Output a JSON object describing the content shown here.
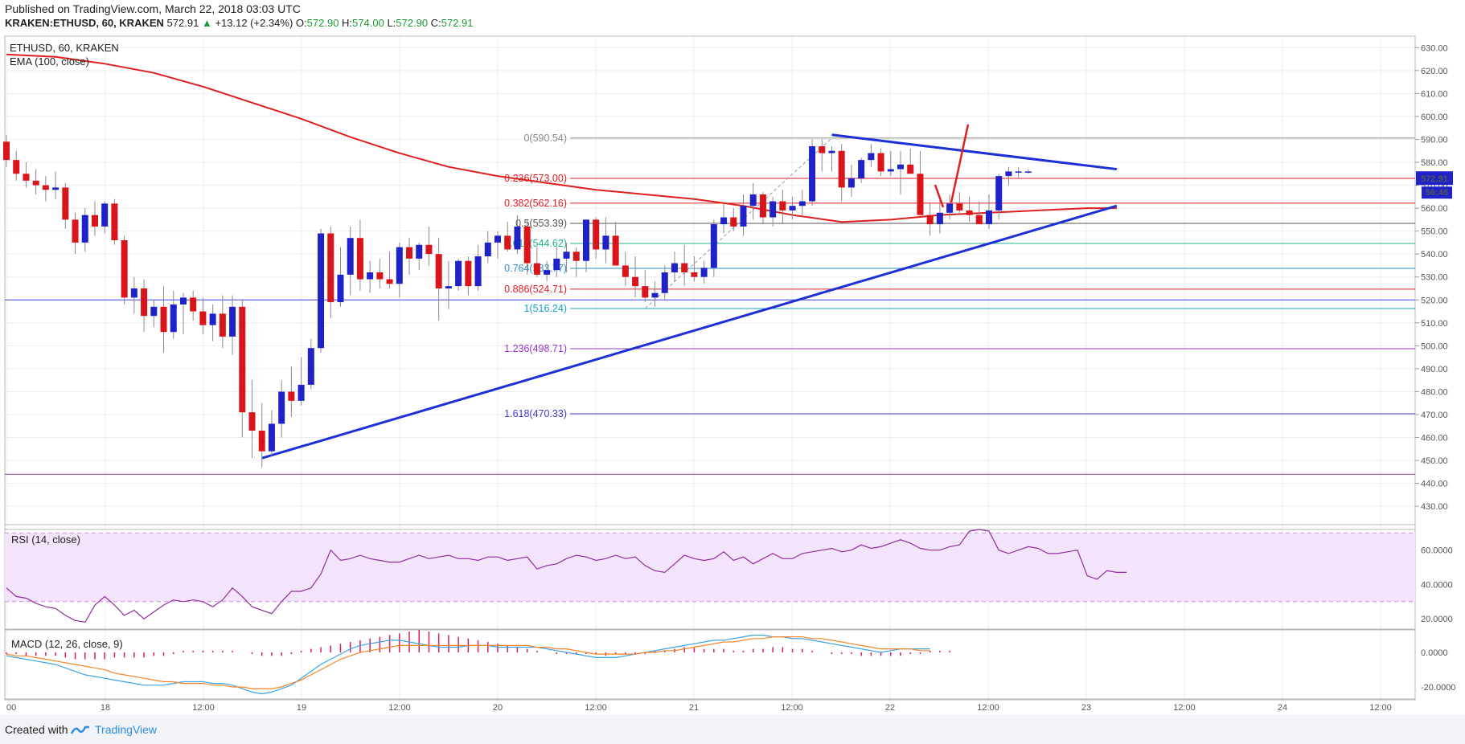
{
  "header": {
    "published": "Published on TradingView.com, March 22, 2018 03:03 UTC",
    "symbol": "KRAKEN:ETHUSD, 60, KRAKEN",
    "last": "572.91",
    "change": "+13.12 (+2.34%)",
    "o_label": "O:",
    "o_value": "572.90",
    "h_label": "H:",
    "h_value": "574.00",
    "l_label": "L:",
    "l_value": "572.90",
    "c_label": "C:",
    "c_value": "572.91"
  },
  "footer": {
    "created_with": "Created with",
    "brand": "TradingView"
  },
  "colors": {
    "up": "#1e22c8",
    "down": "#d9141a",
    "ema": "#e01e1e",
    "trend": "#1d2fd6",
    "rsi": "#8e2e9c",
    "macd": "#3aa3e3",
    "signal": "#f4862a",
    "hist": "#d81b60"
  },
  "chart_data": {
    "type": "candlestick",
    "pane_title": "ETHUSD, 60, KRAKEN",
    "indicator_label": "EMA (100, close)",
    "price_axis": [
      430,
      440,
      450,
      460,
      470,
      480,
      490,
      500,
      510,
      520,
      530,
      540,
      550,
      560,
      570,
      580,
      590,
      600,
      610,
      620,
      630
    ],
    "ylim": [
      422,
      635
    ],
    "x_ticks": [
      "00",
      "18",
      "12:00",
      "19",
      "12:00",
      "20",
      "12:00",
      "21",
      "12:00",
      "22",
      "12:00",
      "23",
      "12:00",
      "24",
      "12:00"
    ],
    "current_price": "572.91",
    "countdown": "56:46",
    "candles": [
      [
        589,
        592,
        578,
        581
      ],
      [
        581,
        585,
        572,
        575
      ],
      [
        575,
        580,
        569,
        572
      ],
      [
        572,
        577,
        566,
        570
      ],
      [
        570,
        574,
        563,
        568
      ],
      [
        568,
        576,
        564,
        569
      ],
      [
        569,
        571,
        551,
        555
      ],
      [
        555,
        558,
        540,
        545
      ],
      [
        545,
        560,
        541,
        557
      ],
      [
        557,
        563,
        548,
        552
      ],
      [
        552,
        563,
        549,
        562
      ],
      [
        562,
        564,
        544,
        546
      ],
      [
        546,
        548,
        518,
        521
      ],
      [
        521,
        530,
        514,
        525
      ],
      [
        525,
        529,
        506,
        513
      ],
      [
        513,
        520,
        508,
        517
      ],
      [
        517,
        526,
        497,
        506
      ],
      [
        506,
        524,
        503,
        518
      ],
      [
        518,
        523,
        505,
        521
      ],
      [
        521,
        524,
        511,
        515
      ],
      [
        515,
        521,
        505,
        509
      ],
      [
        509,
        518,
        502,
        514
      ],
      [
        514,
        522,
        499,
        504
      ],
      [
        504,
        522,
        496,
        517
      ],
      [
        517,
        520,
        460,
        471
      ],
      [
        471,
        485,
        451,
        463
      ],
      [
        463,
        475,
        447,
        454
      ],
      [
        454,
        472,
        452,
        466
      ],
      [
        466,
        485,
        460,
        480
      ],
      [
        480,
        491,
        469,
        476
      ],
      [
        476,
        495,
        474,
        483
      ],
      [
        483,
        503,
        481,
        499
      ],
      [
        499,
        551,
        497,
        549
      ],
      [
        549,
        552,
        512,
        519
      ],
      [
        519,
        543,
        517,
        531
      ],
      [
        531,
        552,
        522,
        547
      ],
      [
        547,
        555,
        524,
        529
      ],
      [
        529,
        537,
        523,
        532
      ],
      [
        532,
        538,
        525,
        529
      ],
      [
        529,
        541,
        525,
        527
      ],
      [
        527,
        545,
        521,
        543
      ],
      [
        543,
        547,
        531,
        538
      ],
      [
        538,
        545,
        533,
        544
      ],
      [
        544,
        552,
        535,
        540
      ],
      [
        540,
        547,
        511,
        525
      ],
      [
        525,
        537,
        516,
        526
      ],
      [
        526,
        538,
        524,
        537
      ],
      [
        537,
        539,
        522,
        526
      ],
      [
        526,
        544,
        524,
        539
      ],
      [
        539,
        550,
        536,
        545
      ],
      [
        545,
        550,
        538,
        548
      ],
      [
        548,
        554,
        541,
        542
      ],
      [
        542,
        557,
        540,
        552
      ],
      [
        552,
        555,
        531,
        536
      ],
      [
        536,
        543,
        530,
        531
      ],
      [
        531,
        537,
        528,
        533
      ],
      [
        533,
        543,
        530,
        538
      ],
      [
        538,
        545,
        532,
        541
      ],
      [
        541,
        543,
        530,
        537
      ],
      [
        537,
        555,
        532,
        555
      ],
      [
        555,
        556,
        538,
        542
      ],
      [
        542,
        556,
        536,
        548
      ],
      [
        548,
        554,
        537,
        535
      ],
      [
        535,
        541,
        526,
        530
      ],
      [
        530,
        539,
        521,
        526
      ],
      [
        526,
        533,
        519,
        521
      ],
      [
        521,
        528,
        517,
        523
      ],
      [
        523,
        535,
        520,
        532
      ],
      [
        532,
        541,
        528,
        536
      ],
      [
        536,
        544,
        526,
        532
      ],
      [
        532,
        539,
        528,
        530
      ],
      [
        530,
        537,
        527,
        534
      ],
      [
        534,
        555,
        530,
        553
      ],
      [
        553,
        562,
        549,
        556
      ],
      [
        556,
        560,
        550,
        552
      ],
      [
        552,
        566,
        548,
        561
      ],
      [
        561,
        571,
        555,
        566
      ],
      [
        566,
        567,
        553,
        556
      ],
      [
        556,
        565,
        552,
        563
      ],
      [
        563,
        568,
        553,
        559
      ],
      [
        559,
        565,
        555,
        561
      ],
      [
        561,
        568,
        556,
        563
      ],
      [
        563,
        590,
        561,
        587
      ],
      [
        587,
        590,
        576,
        584
      ],
      [
        584,
        587,
        576,
        585
      ],
      [
        585,
        588,
        563,
        569
      ],
      [
        569,
        579,
        565,
        573
      ],
      [
        573,
        582,
        571,
        581
      ],
      [
        581,
        588,
        578,
        584
      ],
      [
        584,
        586,
        574,
        576
      ],
      [
        576,
        585,
        574,
        577
      ],
      [
        577,
        585,
        566,
        579
      ],
      [
        579,
        586,
        575,
        575
      ],
      [
        575,
        585,
        559,
        557
      ],
      [
        557,
        562,
        548,
        553
      ],
      [
        553,
        565,
        549,
        558
      ],
      [
        558,
        566,
        555,
        562
      ],
      [
        562,
        567,
        557,
        559
      ],
      [
        559,
        565,
        554,
        557
      ],
      [
        557,
        563,
        553,
        553
      ],
      [
        553,
        566,
        551,
        559
      ],
      [
        559,
        575,
        555,
        574
      ],
      [
        574,
        578,
        570,
        576
      ],
      [
        576,
        578,
        573,
        576
      ],
      [
        576,
        577,
        575,
        576
      ]
    ],
    "ema100": [
      [
        0,
        627
      ],
      [
        5,
        626
      ],
      [
        10,
        623
      ],
      [
        15,
        619
      ],
      [
        20,
        613
      ],
      [
        25,
        606
      ],
      [
        30,
        599
      ],
      [
        35,
        591
      ],
      [
        40,
        584
      ],
      [
        45,
        578
      ],
      [
        50,
        574
      ],
      [
        55,
        571
      ],
      [
        60,
        568
      ],
      [
        65,
        566
      ],
      [
        70,
        564
      ],
      [
        75,
        561
      ],
      [
        80,
        557
      ],
      [
        85,
        554
      ],
      [
        90,
        555
      ],
      [
        95,
        557
      ],
      [
        100,
        558
      ],
      [
        105,
        559
      ],
      [
        110,
        560
      ],
      [
        113,
        560
      ]
    ],
    "fibonacci": [
      {
        "level": "0",
        "price": 590.54,
        "label": "0(590.54)",
        "color": "#8a8a8a"
      },
      {
        "level": "0.236",
        "price": 573.0,
        "label": "0.236(573.00)",
        "color": "#e31b23"
      },
      {
        "level": "0.382",
        "price": 562.16,
        "label": "0.382(562.16)",
        "color": "#e31b23"
      },
      {
        "level": "0.5",
        "price": 553.39,
        "label": "0.5(553.39)",
        "color": "#555555"
      },
      {
        "level": "0.618",
        "price": 544.62,
        "label": "0.618(544.62)",
        "color": "#20b38c"
      },
      {
        "level": "0.764",
        "price": 533.77,
        "label": "0.764(533.77)",
        "color": "#2b8fc6"
      },
      {
        "level": "0.886",
        "price": 524.71,
        "label": "0.886(524.71)",
        "color": "#e31b23"
      },
      {
        "level": "1",
        "price": 516.24,
        "label": "1(516.24)",
        "color": "#1aa0c8"
      },
      {
        "level": "1.236",
        "price": 498.71,
        "label": "1.236(498.71)",
        "color": "#9b35c9"
      },
      {
        "level": "1.618",
        "price": 470.33,
        "label": "1.618(470.33)",
        "color": "#3d3dc8"
      }
    ],
    "horizontal_lines": [
      {
        "price": 520,
        "color": "#3a46d6"
      },
      {
        "price": 444,
        "color": "#9c3a8e"
      }
    ],
    "trendlines": [
      {
        "from": [
          26,
          451
        ],
        "to": [
          113,
          561
        ],
        "color": "#1d2fd6"
      },
      {
        "from": [
          84,
          592
        ],
        "to": [
          113,
          577
        ],
        "color": "#1d2fd6"
      }
    ],
    "rsi": {
      "label": "RSI (14, close)",
      "axis": [
        "60.0000",
        "40.0000",
        "20.0000"
      ],
      "band": [
        30,
        70
      ],
      "ylim": [
        14,
        72
      ],
      "values": [
        38,
        33,
        32,
        29,
        27,
        26,
        22,
        19,
        18,
        28,
        33,
        28,
        22,
        25,
        20,
        24,
        28,
        31,
        30,
        31,
        30,
        27,
        31,
        38,
        33,
        27,
        25,
        23,
        30,
        36,
        36,
        38,
        46,
        60,
        54,
        55,
        57,
        55,
        54,
        53,
        53,
        55,
        57,
        55,
        56,
        57,
        55,
        55,
        54,
        56,
        56,
        54,
        55,
        56,
        49,
        51,
        52,
        55,
        57,
        56,
        54,
        55,
        57,
        55,
        56,
        51,
        48,
        47,
        52,
        57,
        55,
        54,
        55,
        59,
        54,
        56,
        52,
        55,
        58,
        55,
        55,
        58,
        59,
        60,
        61,
        59,
        60,
        63,
        61,
        62,
        64,
        66,
        64,
        61,
        60,
        60,
        62,
        63,
        71,
        72,
        71,
        60,
        58,
        60,
        62,
        61,
        58,
        58,
        59,
        60,
        45,
        43,
        48,
        47,
        47
      ]
    },
    "macd": {
      "label": "MACD (12, 26, close, 9)",
      "axis": [
        "0.0000",
        "-20.0000"
      ],
      "ylim": [
        -27,
        13
      ],
      "macd": [
        -2,
        -3,
        -4,
        -5,
        -6,
        -7,
        -9,
        -11,
        -13,
        -14,
        -15,
        -16,
        -17,
        -18,
        -19,
        -19,
        -19,
        -18,
        -17,
        -17,
        -17,
        -18,
        -18,
        -19,
        -21,
        -23,
        -24,
        -23,
        -21,
        -19,
        -15,
        -11,
        -7,
        -4,
        -1,
        2,
        4,
        5,
        6,
        7,
        7,
        6,
        5,
        4,
        3,
        3,
        3,
        4,
        4,
        4,
        3,
        3,
        3,
        3,
        3,
        2,
        1,
        0,
        -1,
        -2,
        -3,
        -3,
        -3,
        -2,
        -1,
        0,
        1,
        2,
        3,
        4,
        5,
        6,
        7,
        7,
        8,
        9,
        10,
        10,
        9,
        9,
        8,
        8,
        7,
        6,
        5,
        4,
        3,
        2,
        1,
        0,
        1,
        2,
        2,
        2,
        2
      ],
      "signal": [
        -1,
        -2,
        -2,
        -3,
        -4,
        -5,
        -6,
        -7,
        -8,
        -9,
        -10,
        -12,
        -13,
        -14,
        -15,
        -16,
        -17,
        -17,
        -18,
        -18,
        -18,
        -19,
        -19,
        -20,
        -20,
        -21,
        -21,
        -21,
        -20,
        -18,
        -16,
        -13,
        -10,
        -7,
        -4,
        -2,
        0,
        1,
        2,
        3,
        4,
        4,
        4,
        4,
        4,
        4,
        4,
        4,
        4,
        4,
        4,
        4,
        4,
        4,
        3,
        3,
        2,
        2,
        1,
        0,
        -1,
        -1,
        -1,
        -1,
        -1,
        0,
        0,
        1,
        1,
        2,
        3,
        4,
        5,
        6,
        6,
        7,
        8,
        8,
        9,
        9,
        9,
        9,
        8,
        8,
        7,
        6,
        5,
        4,
        3,
        2,
        2,
        2,
        2,
        1,
        1
      ],
      "hist": [
        -1,
        -1,
        -2,
        -2,
        -2,
        -2,
        -3,
        -4,
        -4,
        -4,
        -4,
        -3,
        -3,
        -3,
        -3,
        -2,
        -2,
        -1,
        1,
        1,
        1,
        1,
        1,
        1,
        0,
        -1,
        -2,
        -2,
        -2,
        -1,
        1,
        2,
        3,
        4,
        5,
        6,
        7,
        8,
        9,
        10,
        11,
        12,
        13,
        12,
        11,
        10,
        9,
        8,
        7,
        6,
        5,
        4,
        3,
        2,
        1,
        0,
        -1,
        -1,
        -1,
        -1,
        -1,
        -2,
        -1,
        -1,
        -1,
        -1,
        1,
        1,
        2,
        3,
        3,
        2,
        2,
        2,
        1,
        1,
        2,
        2,
        3,
        3,
        2,
        2,
        1,
        0,
        -1,
        -1,
        -1,
        -2,
        -2,
        -2,
        -2,
        -2,
        -1,
        -1,
        1,
        1,
        1
      ]
    }
  }
}
